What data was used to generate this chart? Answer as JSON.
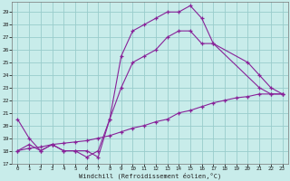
{
  "xlabel": "Windchill (Refroidissement éolien,°C)",
  "background_color": "#c8ecea",
  "grid_color": "#99cccc",
  "line_color": "#882299",
  "xlim": [
    -0.5,
    23.5
  ],
  "ylim": [
    17,
    29.8
  ],
  "yticks": [
    17,
    18,
    19,
    20,
    21,
    22,
    23,
    24,
    25,
    26,
    27,
    28,
    29
  ],
  "xticks": [
    0,
    1,
    2,
    3,
    4,
    5,
    6,
    7,
    8,
    9,
    10,
    11,
    12,
    13,
    14,
    15,
    16,
    17,
    18,
    19,
    20,
    21,
    22,
    23
  ],
  "curve1_x": [
    0,
    1,
    2,
    3,
    4,
    5,
    6,
    7,
    8,
    9,
    10,
    11,
    12,
    13,
    14,
    15,
    16,
    17,
    21,
    22,
    23
  ],
  "curve1_y": [
    20.5,
    19.0,
    18.0,
    18.5,
    18.0,
    18.0,
    17.5,
    18.0,
    20.5,
    25.5,
    27.5,
    28.0,
    28.5,
    29.0,
    29.0,
    29.5,
    28.5,
    26.5,
    23.0,
    22.5,
    22.5
  ],
  "curve2_x": [
    0,
    1,
    2,
    3,
    4,
    5,
    6,
    7,
    8,
    9,
    10,
    11,
    12,
    13,
    14,
    15,
    16,
    17,
    20,
    21,
    22,
    23
  ],
  "curve2_y": [
    18.0,
    18.5,
    18.0,
    18.5,
    18.0,
    18.0,
    18.0,
    17.5,
    20.5,
    23.0,
    25.0,
    25.5,
    26.0,
    27.0,
    27.5,
    27.5,
    26.5,
    26.5,
    25.0,
    24.0,
    23.0,
    22.5
  ],
  "curve3_x": [
    0,
    1,
    2,
    3,
    4,
    5,
    6,
    7,
    8,
    9,
    10,
    11,
    12,
    13,
    14,
    15,
    16,
    17,
    18,
    19,
    20,
    21,
    22,
    23
  ],
  "curve3_y": [
    18.0,
    18.2,
    18.3,
    18.5,
    18.6,
    18.7,
    18.8,
    19.0,
    19.2,
    19.5,
    19.8,
    20.0,
    20.3,
    20.5,
    21.0,
    21.2,
    21.5,
    21.8,
    22.0,
    22.2,
    22.3,
    22.5,
    22.5,
    22.5
  ]
}
